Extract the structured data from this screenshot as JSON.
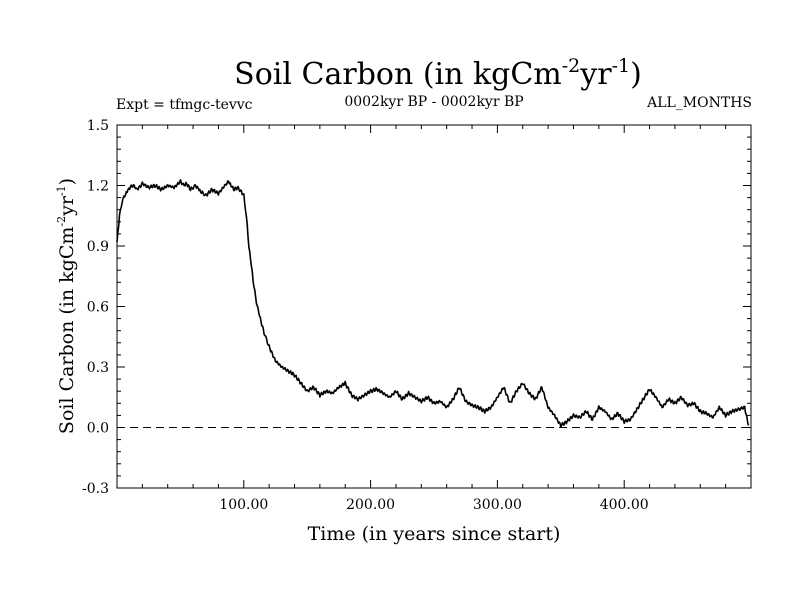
{
  "chart_data": {
    "type": "line",
    "title": {
      "main": "Soil Carbon (in kgCm",
      "exp1": "-2",
      "mid": "yr",
      "exp2": "-1",
      "end": ")"
    },
    "subtitle_left": "Expt = tfmgc-tevvc",
    "subtitle_center": "0002kyr BP - 0002kyr BP",
    "subtitle_right": "ALL_MONTHS",
    "xlabel": "Time (in years since start)",
    "ylabel": {
      "main": "Soil Carbon (in kgCm",
      "exp1": "-2",
      "mid": "yr",
      "exp2": "-1",
      "end": ")"
    },
    "xlim": [
      0,
      500
    ],
    "ylim": [
      -0.3,
      1.5
    ],
    "x_ticks": [
      100,
      200,
      300,
      400
    ],
    "x_tick_labels": [
      "100.00",
      "200.00",
      "300.00",
      "400.00"
    ],
    "y_ticks": [
      -0.3,
      0.0,
      0.3,
      0.6,
      0.9,
      1.2,
      1.5
    ],
    "y_tick_labels": [
      "-0.3",
      "0.0",
      "0.3",
      "0.6",
      "0.9",
      "1.2",
      "1.5"
    ],
    "reference_line": {
      "y": 0.0,
      "style": "dashed"
    },
    "series": [
      {
        "x": [
          0,
          2,
          4,
          6,
          8,
          10,
          13,
          16,
          20,
          25,
          30,
          35,
          40,
          45,
          50,
          53,
          55,
          58,
          62,
          66,
          70,
          75,
          80,
          85,
          88,
          92,
          95,
          98,
          100,
          102,
          104,
          106,
          108,
          110,
          113,
          116,
          120,
          125,
          130,
          135,
          140,
          145,
          150,
          155,
          160,
          165,
          170,
          175,
          180,
          185,
          190,
          195,
          200,
          205,
          210,
          215,
          220,
          225,
          230,
          235,
          240,
          245,
          250,
          255,
          260,
          265,
          270,
          275,
          280,
          285,
          290,
          295,
          300,
          305,
          310,
          315,
          320,
          325,
          330,
          335,
          340,
          345,
          350,
          355,
          360,
          365,
          370,
          375,
          380,
          385,
          390,
          395,
          400,
          405,
          410,
          415,
          420,
          425,
          430,
          435,
          440,
          445,
          450,
          455,
          460,
          465,
          470,
          475,
          480,
          485,
          490,
          495,
          498
        ],
        "y": [
          0.92,
          1.05,
          1.12,
          1.15,
          1.17,
          1.19,
          1.2,
          1.18,
          1.21,
          1.19,
          1.2,
          1.18,
          1.2,
          1.19,
          1.22,
          1.2,
          1.21,
          1.18,
          1.2,
          1.17,
          1.15,
          1.18,
          1.16,
          1.2,
          1.22,
          1.18,
          1.19,
          1.17,
          1.15,
          1.05,
          0.9,
          0.8,
          0.7,
          0.62,
          0.54,
          0.47,
          0.4,
          0.33,
          0.3,
          0.28,
          0.26,
          0.22,
          0.18,
          0.2,
          0.16,
          0.18,
          0.17,
          0.2,
          0.22,
          0.16,
          0.14,
          0.16,
          0.18,
          0.19,
          0.17,
          0.15,
          0.18,
          0.14,
          0.17,
          0.15,
          0.13,
          0.15,
          0.12,
          0.13,
          0.1,
          0.14,
          0.2,
          0.13,
          0.11,
          0.1,
          0.08,
          0.1,
          0.15,
          0.2,
          0.12,
          0.18,
          0.22,
          0.17,
          0.14,
          0.2,
          0.1,
          0.06,
          0.01,
          0.03,
          0.06,
          0.05,
          0.08,
          0.04,
          0.1,
          0.08,
          0.04,
          0.07,
          0.03,
          0.04,
          0.09,
          0.14,
          0.19,
          0.15,
          0.1,
          0.14,
          0.12,
          0.15,
          0.11,
          0.12,
          0.08,
          0.07,
          0.05,
          0.1,
          0.06,
          0.08,
          0.09,
          0.1,
          0.01
        ]
      }
    ],
    "colors": {
      "line": "#000000",
      "background": "#ffffff"
    }
  }
}
